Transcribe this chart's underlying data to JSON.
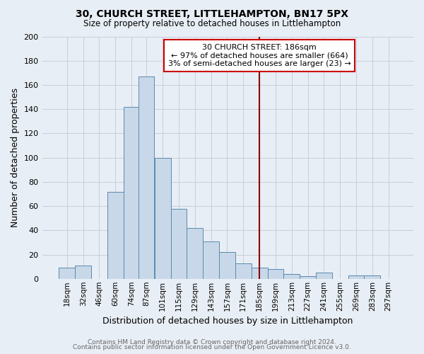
{
  "title": "30, CHURCH STREET, LITTLEHAMPTON, BN17 5PX",
  "subtitle": "Size of property relative to detached houses in Littlehampton",
  "xlabel": "Distribution of detached houses by size in Littlehampton",
  "ylabel": "Number of detached properties",
  "footer_line1": "Contains HM Land Registry data © Crown copyright and database right 2024.",
  "footer_line2": "Contains public sector information licensed under the Open Government Licence v3.0.",
  "bin_labels": [
    "18sqm",
    "32sqm",
    "46sqm",
    "60sqm",
    "74sqm",
    "87sqm",
    "101sqm",
    "115sqm",
    "129sqm",
    "143sqm",
    "157sqm",
    "171sqm",
    "185sqm",
    "199sqm",
    "213sqm",
    "227sqm",
    "241sqm",
    "255sqm",
    "269sqm",
    "283sqm",
    "297sqm"
  ],
  "bar_values": [
    9,
    11,
    0,
    72,
    142,
    167,
    100,
    58,
    42,
    31,
    22,
    13,
    9,
    8,
    4,
    2,
    5,
    0,
    3,
    3,
    0
  ],
  "bar_color": "#c8d8e8",
  "bar_edge_color": "#5a8ab0",
  "property_line_color": "#8b0000",
  "annotation_title": "30 CHURCH STREET: 186sqm",
  "annotation_line1": "← 97% of detached houses are smaller (664)",
  "annotation_line2": "3% of semi-detached houses are larger (23) →",
  "annotation_box_color": "#ffffff",
  "annotation_box_edge": "#cc0000",
  "ylim": [
    0,
    200
  ],
  "yticks": [
    0,
    20,
    40,
    60,
    80,
    100,
    120,
    140,
    160,
    180,
    200
  ],
  "grid_color": "#c8cfd8",
  "bg_color": "#e8eef5"
}
